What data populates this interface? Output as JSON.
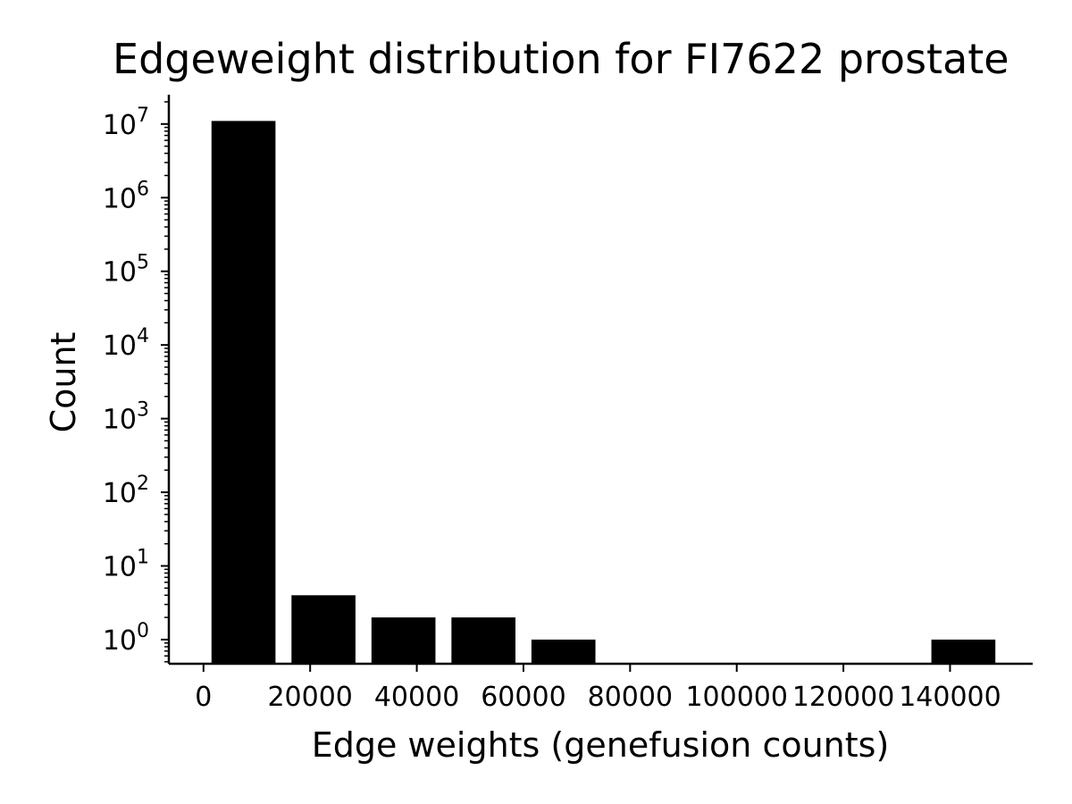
{
  "chart_data": {
    "type": "bar",
    "title": "Edgeweight distribution for FI7622 prostate",
    "xlabel": "Edge weights (genefusion counts)",
    "ylabel": "Count",
    "yscale": "log",
    "x_ticks": [
      {
        "value": 0,
        "label": "0"
      },
      {
        "value": 20000,
        "label": "20000"
      },
      {
        "value": 40000,
        "label": "40000"
      },
      {
        "value": 60000,
        "label": "60000"
      },
      {
        "value": 80000,
        "label": "80000"
      },
      {
        "value": 100000,
        "label": "100000"
      },
      {
        "value": 120000,
        "label": "120000"
      },
      {
        "value": 140000,
        "label": "140000"
      }
    ],
    "y_ticks": [
      {
        "value": 1,
        "base": "10",
        "exp": "0"
      },
      {
        "value": 10,
        "base": "10",
        "exp": "1"
      },
      {
        "value": 100,
        "base": "10",
        "exp": "2"
      },
      {
        "value": 1000,
        "base": "10",
        "exp": "3"
      },
      {
        "value": 10000,
        "base": "10",
        "exp": "4"
      },
      {
        "value": 100000,
        "base": "10",
        "exp": "5"
      },
      {
        "value": 1000000,
        "base": "10",
        "exp": "6"
      },
      {
        "value": 10000000,
        "base": "10",
        "exp": "7"
      }
    ],
    "xlim": [
      -6500,
      155500
    ],
    "ylim": [
      0.47,
      25000000
    ],
    "bins": [
      {
        "start": 1500,
        "end": 13500,
        "count": 11000000
      },
      {
        "start": 16500,
        "end": 28500,
        "count": 4
      },
      {
        "start": 31500,
        "end": 43500,
        "count": 2
      },
      {
        "start": 46500,
        "end": 58500,
        "count": 2
      },
      {
        "start": 61500,
        "end": 73500,
        "count": 1
      },
      {
        "start": 136500,
        "end": 148500,
        "count": 1
      }
    ],
    "grid": false,
    "legend": "none",
    "bar_color": "#000000"
  }
}
